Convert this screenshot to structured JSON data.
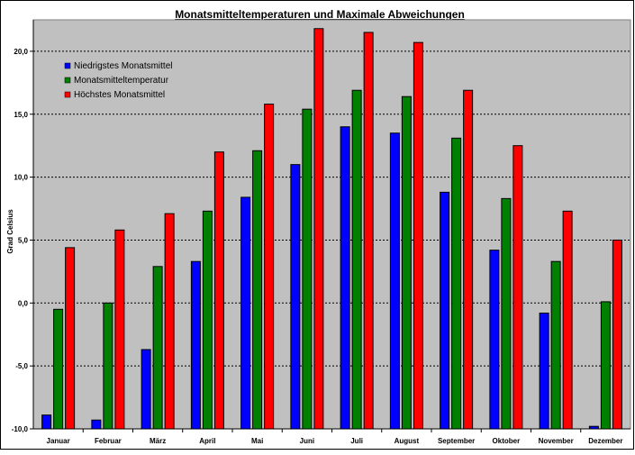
{
  "chart_data": {
    "type": "bar",
    "title": "Monatsmitteltemperaturen und Maximale Abweichungen",
    "xlabel": "",
    "ylabel": "Grad Celsius",
    "ylim": [
      -10,
      22.5
    ],
    "yticks": [
      -10,
      -5,
      0,
      5,
      10,
      15,
      20
    ],
    "ytick_labels": [
      "-10,0",
      "-5,0",
      "0,0",
      "5,0",
      "10,0",
      "15,0",
      "20,0"
    ],
    "grid": true,
    "legend_position": "top-left",
    "categories": [
      "Januar",
      "Februar",
      "März",
      "April",
      "Mai",
      "Juni",
      "Juli",
      "August",
      "September",
      "Oktober",
      "November",
      "Dezember"
    ],
    "series": [
      {
        "name": "Niedrigstes Monatsmittel",
        "color": "#0000ff",
        "values": [
          -8.9,
          -9.3,
          -3.7,
          3.3,
          8.4,
          11.0,
          14.0,
          13.5,
          8.8,
          4.2,
          -0.8,
          -9.8
        ]
      },
      {
        "name": "Monatsmitteltemperatur",
        "color": "#008000",
        "values": [
          -0.5,
          0.0,
          2.9,
          7.3,
          12.1,
          15.4,
          16.9,
          16.4,
          13.1,
          8.3,
          3.3,
          0.1
        ]
      },
      {
        "name": "Höchstes Monatsmittel",
        "color": "#ff0000",
        "values": [
          4.4,
          5.8,
          7.1,
          12.0,
          15.8,
          21.8,
          21.5,
          20.7,
          16.9,
          12.5,
          7.3,
          5.0
        ]
      }
    ],
    "plot_background": "#c0c0c0"
  }
}
